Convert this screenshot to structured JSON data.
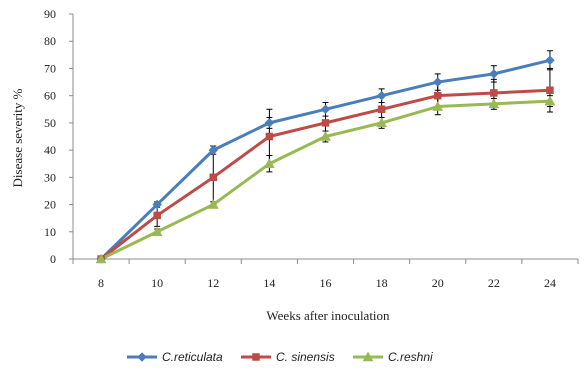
{
  "chart_data": {
    "type": "line",
    "title": "",
    "xlabel": "Weeks after inoculation",
    "ylabel": "Disease severity %",
    "categories": [
      "8",
      "10",
      "12",
      "14",
      "16",
      "18",
      "20",
      "22",
      "24"
    ],
    "yticks": [
      "0",
      "10",
      "20",
      "30",
      "40",
      "50",
      "60",
      "70",
      "80",
      "90"
    ],
    "ylim": [
      0,
      90
    ],
    "grid": false,
    "legend_position": "bottom",
    "series": [
      {
        "name": "C.reticulata",
        "color": "#4a7ebb",
        "marker": "diamond",
        "values": [
          0,
          20,
          40,
          50,
          55,
          60,
          65,
          68,
          73
        ],
        "errors": [
          0,
          1,
          1.5,
          2,
          2.5,
          2.5,
          3,
          3,
          3.5
        ]
      },
      {
        "name": "C. sinensis",
        "color": "#be4b48",
        "marker": "square",
        "values": [
          0,
          16,
          30,
          45,
          50,
          55,
          60,
          61,
          62
        ],
        "errors": [
          0,
          4,
          10,
          10,
          5,
          5,
          5,
          5,
          8
        ]
      },
      {
        "name": "C.reshni",
        "color": "#98b954",
        "marker": "triangle",
        "values": [
          0,
          10,
          20,
          35,
          45,
          50,
          56,
          57,
          58
        ],
        "errors": [
          0,
          1,
          1,
          3,
          2,
          2,
          3,
          2,
          2
        ]
      }
    ]
  }
}
